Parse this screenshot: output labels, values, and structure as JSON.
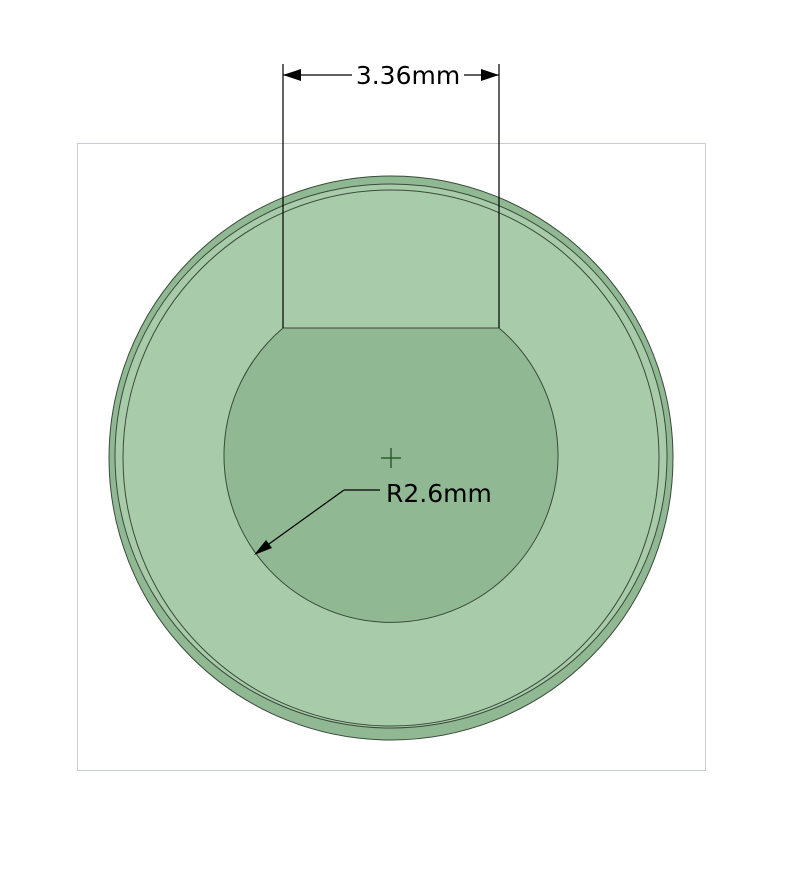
{
  "drawing": {
    "width_dimension_label": "3.36mm",
    "radius_dimension_label": "R2.6mm",
    "part_fill_color": "#a8ccaa",
    "part_edge_color": "#3a4a3a",
    "part_shadow_color": "#7fa882",
    "frame_color": "#c9cbe0",
    "center_mark_color": "#2f5f2f",
    "dimension_line_color": "#000000"
  }
}
